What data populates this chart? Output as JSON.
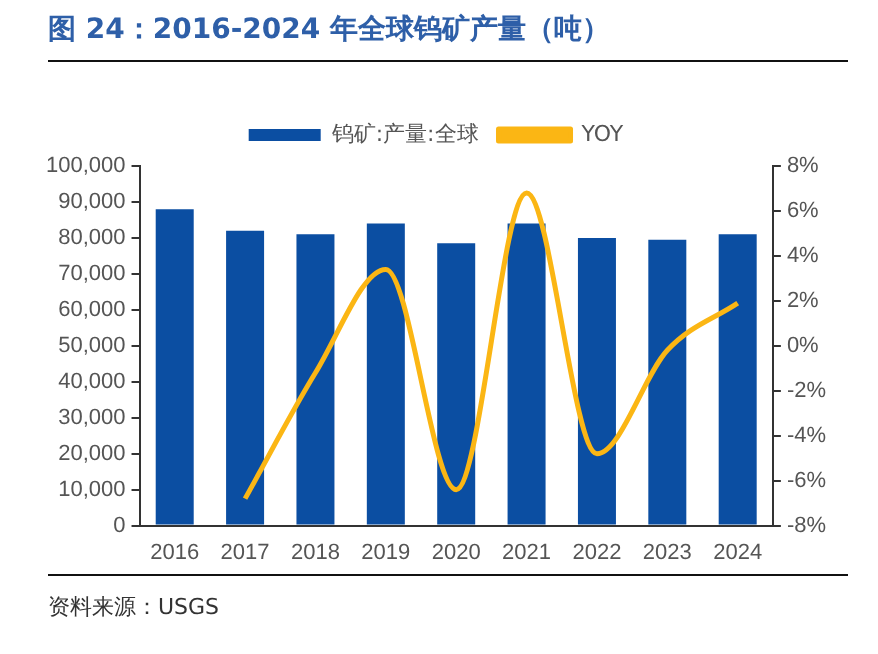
{
  "chart_data": {
    "type": "bar",
    "title": "图 24：2016-2024 年全球钨矿产量（吨）",
    "categories": [
      "2016",
      "2017",
      "2018",
      "2019",
      "2020",
      "2021",
      "2022",
      "2023",
      "2024"
    ],
    "series": [
      {
        "name": "钨矿:产量:全球",
        "color": "#0b4ea2",
        "values": [
          88000,
          82000,
          81000,
          84000,
          78500,
          84000,
          80000,
          79500,
          81000
        ]
      },
      {
        "name": "YOY",
        "type": "line",
        "axis": "y2",
        "color": "#fbb614",
        "values": [
          null,
          -6.8,
          -1.2,
          3.4,
          -6.4,
          6.8,
          -4.8,
          -0.2,
          1.9
        ]
      }
    ],
    "ylim": [
      0,
      100000
    ],
    "yticks": [
      0,
      {
        "value": 10000,
        "label": "10,000"
      },
      {
        "value": 20000,
        "label": "20,000"
      },
      {
        "value": 30000,
        "label": "30,000"
      },
      {
        "value": 40000,
        "label": "40,000"
      },
      {
        "value": 50000,
        "label": "50,000"
      },
      {
        "value": 60000,
        "label": "60,000"
      },
      {
        "value": 70000,
        "label": "70,000"
      },
      {
        "value": 80000,
        "label": "80,000"
      },
      {
        "value": 90000,
        "label": "90,000"
      },
      {
        "value": 100000,
        "label": "100,000"
      }
    ],
    "y2lim": [
      -8,
      8
    ],
    "y2ticks": [
      {
        "value": -8,
        "label": "-8%"
      },
      {
        "value": -6,
        "label": "-6%"
      },
      {
        "value": -4,
        "label": "-4%"
      },
      {
        "value": -2,
        "label": "-2%"
      },
      {
        "value": 0,
        "label": "0%"
      },
      {
        "value": 2,
        "label": "2%"
      },
      {
        "value": 4,
        "label": "4%"
      },
      {
        "value": 6,
        "label": "6%"
      },
      {
        "value": 8,
        "label": "8%"
      }
    ],
    "grid": false,
    "legend": "top",
    "marker": "none",
    "annotations": [
      "资料来源：USGS"
    ]
  }
}
